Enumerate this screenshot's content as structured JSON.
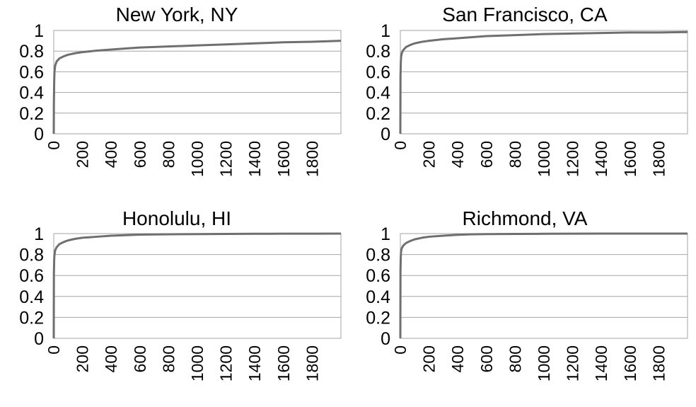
{
  "chart_data": [
    {
      "type": "line",
      "title": "New York, NY",
      "ylim": [
        0,
        1
      ],
      "xlim": [
        0,
        2000
      ],
      "yticks": [
        "0",
        "0.2",
        "0.4",
        "0.6",
        "0.8",
        "1"
      ],
      "xticks": [
        "0",
        "200",
        "400",
        "600",
        "800",
        "1000",
        "1200",
        "1400",
        "1600",
        "1800"
      ],
      "grid": true,
      "series": [
        {
          "x": [
            0,
            1,
            3,
            5,
            10,
            20,
            40,
            70,
            100,
            150,
            200,
            300,
            400,
            500,
            600,
            800,
            1000,
            1200,
            1400,
            1600,
            1800,
            2000
          ],
          "y": [
            0,
            0.3,
            0.5,
            0.6,
            0.66,
            0.7,
            0.73,
            0.75,
            0.765,
            0.78,
            0.79,
            0.805,
            0.815,
            0.825,
            0.835,
            0.845,
            0.855,
            0.865,
            0.875,
            0.885,
            0.89,
            0.9
          ]
        }
      ]
    },
    {
      "type": "line",
      "title": "San Francisco, CA",
      "ylim": [
        0,
        1
      ],
      "xlim": [
        0,
        2000
      ],
      "yticks": [
        "0",
        "0.2",
        "0.4",
        "0.6",
        "0.8",
        "1"
      ],
      "xticks": [
        "0",
        "200",
        "400",
        "600",
        "800",
        "1000",
        "1200",
        "1400",
        "1600",
        "1800"
      ],
      "grid": true,
      "series": [
        {
          "x": [
            0,
            1,
            3,
            5,
            10,
            20,
            40,
            70,
            100,
            150,
            200,
            300,
            400,
            500,
            600,
            800,
            1000,
            1200,
            1400,
            1600,
            1800,
            2000
          ],
          "y": [
            0,
            0.55,
            0.68,
            0.74,
            0.78,
            0.81,
            0.84,
            0.86,
            0.875,
            0.89,
            0.9,
            0.915,
            0.925,
            0.935,
            0.945,
            0.955,
            0.965,
            0.97,
            0.975,
            0.98,
            0.98,
            0.985
          ]
        }
      ]
    },
    {
      "type": "line",
      "title": "Honolulu, HI",
      "ylim": [
        0,
        1
      ],
      "xlim": [
        0,
        2000
      ],
      "yticks": [
        "0",
        "0.2",
        "0.4",
        "0.6",
        "0.8",
        "1"
      ],
      "xticks": [
        "0",
        "200",
        "400",
        "600",
        "800",
        "1000",
        "1200",
        "1400",
        "1600",
        "1800"
      ],
      "grid": true,
      "series": [
        {
          "x": [
            0,
            1,
            3,
            5,
            10,
            20,
            40,
            70,
            100,
            150,
            200,
            300,
            400,
            500,
            600,
            800,
            1000,
            1200,
            1400,
            1600,
            1800,
            2000
          ],
          "y": [
            0,
            0.62,
            0.75,
            0.8,
            0.84,
            0.87,
            0.9,
            0.92,
            0.935,
            0.95,
            0.96,
            0.97,
            0.98,
            0.985,
            0.99,
            0.993,
            0.995,
            0.997,
            0.998,
            0.999,
            0.999,
            1.0
          ]
        }
      ]
    },
    {
      "type": "line",
      "title": "Richmond, VA",
      "ylim": [
        0,
        1
      ],
      "xlim": [
        0,
        2000
      ],
      "yticks": [
        "0",
        "0.2",
        "0.4",
        "0.6",
        "0.8",
        "1"
      ],
      "xticks": [
        "0",
        "200",
        "400",
        "600",
        "800",
        "1000",
        "1200",
        "1400",
        "1600",
        "1800"
      ],
      "grid": true,
      "series": [
        {
          "x": [
            0,
            1,
            3,
            5,
            10,
            20,
            40,
            70,
            100,
            150,
            200,
            300,
            400,
            500,
            600,
            800,
            1000,
            1200,
            1400,
            1600,
            1800,
            2000
          ],
          "y": [
            0,
            0.65,
            0.78,
            0.83,
            0.86,
            0.885,
            0.91,
            0.93,
            0.945,
            0.96,
            0.97,
            0.98,
            0.988,
            0.993,
            0.995,
            0.997,
            0.998,
            0.999,
            1.0,
            1.0,
            1.0,
            1.0
          ]
        }
      ]
    }
  ],
  "colors": {
    "line": "#6f6f6f",
    "grid": "#a6a6a6",
    "text": "#000000"
  }
}
